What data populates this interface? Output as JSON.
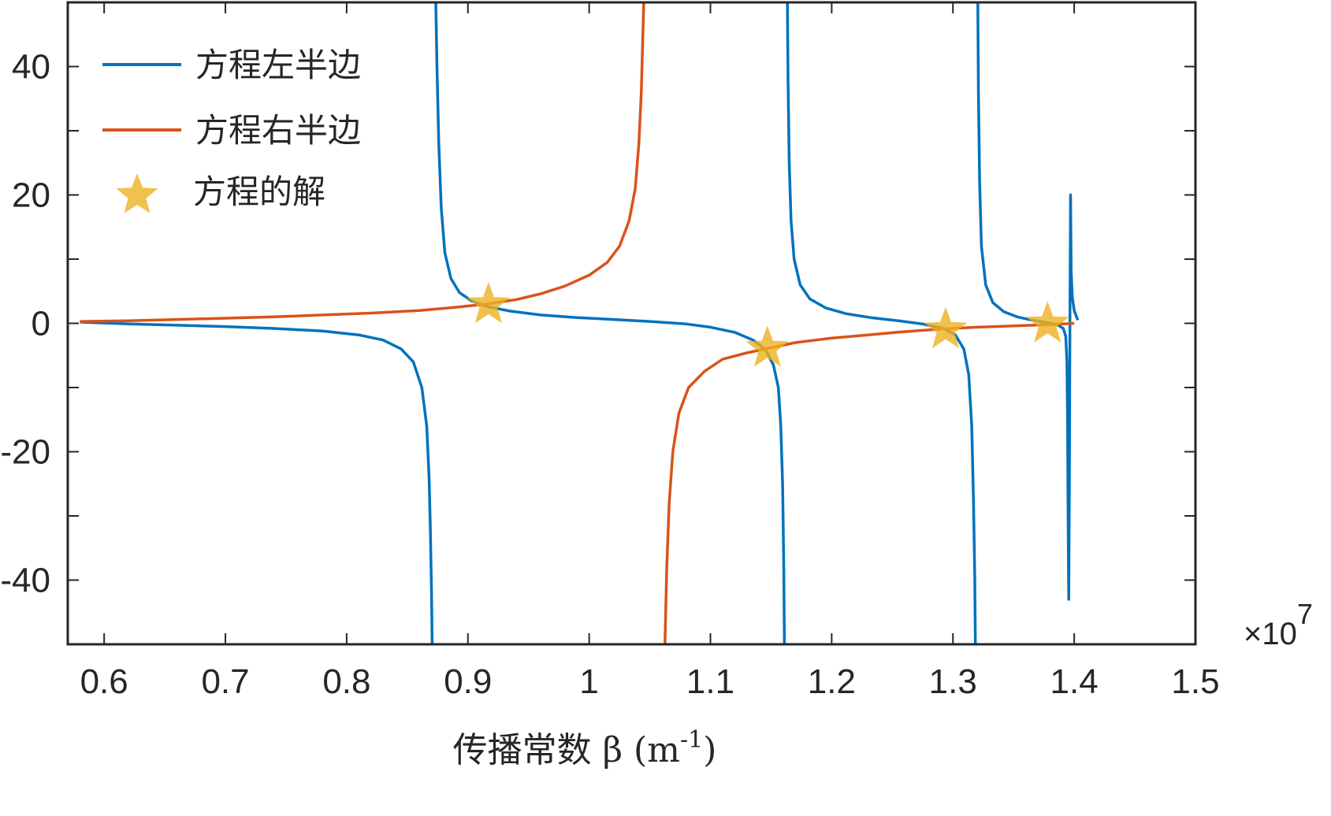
{
  "chart_data": {
    "type": "line",
    "title": "",
    "xlabel": "传播常数 β (m",
    "xlabel_superscript": "-1",
    "xlabel_suffix": ")",
    "ylabel": "",
    "x_exponent_label": "×10",
    "x_exponent_power": "7",
    "xlim": [
      0.57,
      1.5
    ],
    "ylim": [
      -50,
      50
    ],
    "x_ticks": [
      0.6,
      0.7,
      0.8,
      0.9,
      1.0,
      1.1,
      1.2,
      1.3,
      1.4,
      1.5
    ],
    "x_tick_labels": [
      "0.6",
      "0.7",
      "0.8",
      "0.9",
      "1",
      "1.1",
      "1.2",
      "1.3",
      "1.4",
      "1.5"
    ],
    "y_ticks": [
      -40,
      -20,
      0,
      20,
      40
    ],
    "y_tick_labels": [
      "-40",
      "-20",
      "0",
      "20",
      "40"
    ],
    "grid": false,
    "legend_position": "top-left",
    "series": [
      {
        "name": "方程左半边",
        "color": "#0072BD",
        "segments": [
          [
            [
              0.58,
              0.2
            ],
            [
              0.62,
              -0.1
            ],
            [
              0.66,
              -0.3
            ],
            [
              0.7,
              -0.5
            ],
            [
              0.74,
              -0.8
            ],
            [
              0.78,
              -1.2
            ],
            [
              0.81,
              -1.8
            ],
            [
              0.83,
              -2.6
            ],
            [
              0.845,
              -4.0
            ],
            [
              0.855,
              -6.0
            ],
            [
              0.862,
              -10.0
            ],
            [
              0.866,
              -16.0
            ],
            [
              0.868,
              -24.0
            ],
            [
              0.869,
              -32.0
            ],
            [
              0.87,
              -42.0
            ],
            [
              0.8705,
              -50.0
            ]
          ],
          [
            [
              0.8735,
              50.0
            ],
            [
              0.8745,
              40.0
            ],
            [
              0.876,
              28.0
            ],
            [
              0.878,
              18.0
            ],
            [
              0.881,
              11.0
            ],
            [
              0.886,
              7.0
            ],
            [
              0.893,
              4.8
            ],
            [
              0.903,
              3.5
            ],
            [
              0.916,
              2.6
            ],
            [
              0.935,
              1.9
            ],
            [
              0.96,
              1.3
            ],
            [
              0.99,
              0.9
            ],
            [
              1.02,
              0.6
            ],
            [
              1.05,
              0.3
            ],
            [
              1.08,
              -0.1
            ],
            [
              1.1,
              -0.6
            ],
            [
              1.12,
              -1.4
            ],
            [
              1.135,
              -2.6
            ],
            [
              1.145,
              -4.0
            ],
            [
              1.152,
              -6.5
            ],
            [
              1.156,
              -10.0
            ],
            [
              1.158,
              -16.0
            ],
            [
              1.1595,
              -25.0
            ],
            [
              1.1605,
              -38.0
            ],
            [
              1.161,
              -50.0
            ]
          ],
          [
            [
              1.1635,
              50.0
            ],
            [
              1.164,
              38.0
            ],
            [
              1.165,
              25.0
            ],
            [
              1.1665,
              16.0
            ],
            [
              1.169,
              10.0
            ],
            [
              1.174,
              6.0
            ],
            [
              1.182,
              3.8
            ],
            [
              1.195,
              2.4
            ],
            [
              1.212,
              1.5
            ],
            [
              1.232,
              0.9
            ],
            [
              1.255,
              0.4
            ],
            [
              1.275,
              -0.1
            ],
            [
              1.292,
              -0.8
            ],
            [
              1.302,
              -1.8
            ],
            [
              1.309,
              -4.0
            ],
            [
              1.313,
              -8.0
            ],
            [
              1.3155,
              -16.0
            ],
            [
              1.317,
              -28.0
            ],
            [
              1.318,
              -40.0
            ],
            [
              1.3185,
              -50.0
            ]
          ],
          [
            [
              1.3205,
              50.0
            ],
            [
              1.321,
              36.0
            ],
            [
              1.322,
              22.0
            ],
            [
              1.3235,
              12.0
            ],
            [
              1.327,
              6.0
            ],
            [
              1.333,
              3.2
            ],
            [
              1.342,
              1.8
            ],
            [
              1.353,
              1.0
            ],
            [
              1.365,
              0.5
            ],
            [
              1.378,
              0.1
            ],
            [
              1.386,
              -0.2
            ],
            [
              1.391,
              -0.8
            ],
            [
              1.393,
              -2.0
            ],
            [
              1.394,
              -6.0
            ],
            [
              1.3945,
              -15.0
            ],
            [
              1.395,
              -30.0
            ],
            [
              1.3955,
              -43.0
            ],
            [
              1.396,
              -25.0
            ],
            [
              1.3965,
              0.0
            ],
            [
              1.3968,
              12.0
            ],
            [
              1.397,
              20.0
            ],
            [
              1.3975,
              8.0
            ],
            [
              1.3985,
              4.0
            ],
            [
              1.4,
              2.0
            ],
            [
              1.403,
              0.5
            ]
          ]
        ]
      },
      {
        "name": "方程右半边",
        "color": "#D95319",
        "segments": [
          [
            [
              0.58,
              0.3
            ],
            [
              0.62,
              0.4
            ],
            [
              0.66,
              0.6
            ],
            [
              0.7,
              0.8
            ],
            [
              0.74,
              1.0
            ],
            [
              0.78,
              1.3
            ],
            [
              0.82,
              1.6
            ],
            [
              0.86,
              2.0
            ],
            [
              0.89,
              2.5
            ],
            [
              0.915,
              3.0
            ],
            [
              0.94,
              3.7
            ],
            [
              0.96,
              4.6
            ],
            [
              0.98,
              5.8
            ],
            [
              1.0,
              7.5
            ],
            [
              1.015,
              9.5
            ],
            [
              1.025,
              12.0
            ],
            [
              1.033,
              16.0
            ],
            [
              1.038,
              21.0
            ],
            [
              1.041,
              28.0
            ],
            [
              1.043,
              36.0
            ],
            [
              1.045,
              50.0
            ]
          ],
          [
            [
              1.0625,
              -50.0
            ],
            [
              1.064,
              -38.0
            ],
            [
              1.066,
              -28.0
            ],
            [
              1.069,
              -20.0
            ],
            [
              1.074,
              -14.0
            ],
            [
              1.082,
              -10.0
            ],
            [
              1.095,
              -7.5
            ],
            [
              1.11,
              -5.6
            ],
            [
              1.13,
              -4.6
            ],
            [
              1.15,
              -3.8
            ],
            [
              1.17,
              -3.0
            ],
            [
              1.2,
              -2.3
            ],
            [
              1.23,
              -1.8
            ],
            [
              1.26,
              -1.3
            ],
            [
              1.29,
              -0.9
            ],
            [
              1.32,
              -0.6
            ],
            [
              1.35,
              -0.4
            ],
            [
              1.38,
              -0.2
            ],
            [
              1.4,
              0.0
            ]
          ]
        ]
      }
    ],
    "solutions": {
      "name": "方程的解",
      "color": "#EDB120",
      "points": [
        [
          0.917,
          2.9
        ],
        [
          1.147,
          -3.9
        ],
        [
          1.294,
          -1.0
        ],
        [
          1.378,
          -0.1
        ]
      ]
    }
  }
}
